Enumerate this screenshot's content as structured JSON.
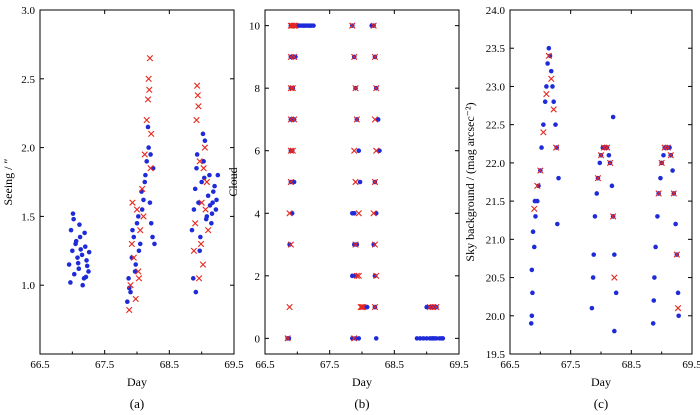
{
  "figure": {
    "colors": {
      "blue": "#1f2bd8",
      "red": "#e8261c",
      "axis": "#000000"
    },
    "marker_legend": {
      "blue": "circle",
      "red": "x-cross"
    }
  },
  "chart_data": [
    {
      "id": "a",
      "type": "scatter",
      "panel_label": "(a)",
      "xlabel": "Day",
      "ylabel": "Seeing / ″",
      "xlim": [
        66.5,
        69.5
      ],
      "ylim": [
        0.5,
        3.0
      ],
      "xticks": [
        66.5,
        67.5,
        68.5,
        69.5
      ],
      "xtick_labels": [
        "66.5",
        "67.5",
        "68.5",
        "69.5"
      ],
      "yticks": [
        1.0,
        1.5,
        2.0,
        2.5,
        3.0
      ],
      "ytick_labels": [
        "1.0",
        "1.5",
        "2.0",
        "2.5",
        "3.0"
      ],
      "series": [
        {
          "name": "blue-points",
          "marker": "circle",
          "color": "#1f2bd8",
          "x": [
            66.95,
            66.97,
            67.0,
            67.02,
            67.05,
            67.08,
            67.1,
            67.12,
            67.15,
            67.18,
            67.2,
            67.22,
            67.25,
            66.98,
            67.03,
            67.06,
            67.09,
            67.13,
            67.16,
            67.19,
            67.23,
            67.26,
            67.01,
            67.11,
            67.21,
            67.85,
            67.87,
            67.9,
            67.92,
            67.95,
            67.97,
            68.0,
            68.03,
            68.05,
            68.08,
            68.1,
            68.12,
            68.15,
            68.18,
            68.2,
            68.22,
            68.25,
            68.27,
            67.88,
            67.93,
            67.98,
            68.02,
            68.07,
            68.13,
            68.17,
            68.21,
            68.24,
            68.85,
            68.88,
            68.9,
            68.92,
            68.95,
            68.97,
            69.0,
            69.03,
            69.05,
            69.08,
            69.1,
            69.12,
            69.15,
            69.17,
            69.2,
            69.22,
            69.25,
            68.87,
            68.93,
            68.98,
            69.02,
            69.07,
            69.13,
            69.18,
            69.23,
            68.91,
            69.04,
            69.16
          ],
          "y": [
            1.15,
            1.02,
            1.25,
            1.48,
            1.3,
            1.2,
            1.12,
            1.35,
            1.22,
            1.05,
            1.28,
            1.18,
            1.1,
            1.4,
            1.08,
            1.32,
            1.16,
            1.26,
            1.0,
            1.38,
            1.14,
            1.24,
            1.52,
            1.44,
            1.06,
            0.88,
            1.05,
            0.95,
            1.2,
            1.35,
            1.1,
            1.45,
            1.25,
            1.3,
            1.55,
            1.62,
            1.75,
            1.9,
            2.0,
            1.6,
            1.45,
            1.85,
            1.3,
            0.98,
            1.4,
            1.15,
            1.5,
            1.68,
            1.8,
            2.15,
            1.95,
            1.35,
            1.4,
            1.55,
            1.7,
            1.85,
            1.6,
            1.25,
            1.75,
            1.9,
            2.05,
            1.5,
            1.65,
            1.8,
            1.45,
            1.6,
            1.72,
            1.55,
            1.8,
            1.05,
            1.95,
            1.35,
            2.1,
            1.48,
            1.58,
            1.68,
            1.62,
            0.95,
            1.78,
            1.52
          ]
        },
        {
          "name": "red-crosses",
          "marker": "x",
          "color": "#e8261c",
          "x": [
            67.88,
            67.9,
            67.93,
            67.95,
            67.98,
            68.0,
            68.02,
            68.05,
            68.08,
            68.12,
            68.15,
            68.17,
            68.18,
            68.2,
            68.22,
            68.19,
            68.21,
            67.92,
            68.03,
            68.1,
            68.88,
            68.9,
            68.93,
            68.95,
            68.97,
            69.0,
            69.02,
            69.05,
            69.08,
            69.1,
            68.92,
            68.96,
            69.03,
            68.94,
            68.99,
            69.06
          ],
          "y": [
            0.82,
            1.0,
            1.6,
            1.2,
            0.9,
            1.55,
            1.1,
            1.4,
            1.7,
            1.95,
            2.2,
            2.35,
            2.5,
            2.65,
            2.1,
            2.42,
            1.85,
            1.3,
            1.05,
            1.5,
            1.25,
            1.45,
            2.45,
            2.3,
            1.9,
            1.6,
            1.15,
            2.0,
            1.75,
            1.4,
            2.2,
            1.05,
            1.85,
            2.38,
            1.3,
            1.55
          ]
        }
      ]
    },
    {
      "id": "b",
      "type": "scatter",
      "panel_label": "(b)",
      "xlabel": "Day",
      "ylabel": "Cloud",
      "xlim": [
        66.5,
        69.5
      ],
      "ylim": [
        -0.5,
        10.5
      ],
      "xticks": [
        66.5,
        67.5,
        68.5,
        69.5
      ],
      "xtick_labels": [
        "66.5",
        "67.5",
        "68.5",
        "69.5"
      ],
      "yticks": [
        0,
        2,
        4,
        6,
        8,
        10
      ],
      "ytick_labels": [
        "0",
        "2",
        "4",
        "6",
        "8",
        "10"
      ],
      "series": [
        {
          "name": "blue-points",
          "marker": "circle",
          "color": "#1f2bd8",
          "x": [
            66.85,
            66.87,
            66.9,
            66.92,
            66.95,
            66.97,
            67.0,
            67.02,
            67.05,
            67.08,
            67.1,
            67.12,
            67.15,
            67.18,
            67.2,
            67.22,
            67.25,
            66.9,
            66.93,
            66.95,
            66.97,
            66.9,
            66.93,
            66.9,
            66.95,
            66.9,
            66.92,
            66.9,
            66.95,
            66.92,
            66.88,
            67.85,
            67.88,
            67.9,
            67.92,
            67.95,
            67.97,
            68.0,
            68.02,
            68.05,
            68.08,
            67.85,
            67.9,
            67.95,
            67.88,
            67.92,
            67.85,
            67.9,
            67.85,
            67.88,
            68.15,
            68.18,
            68.2,
            68.22,
            68.25,
            68.27,
            68.2,
            68.22,
            68.18,
            68.2,
            68.2,
            68.22,
            68.85,
            68.9,
            68.95,
            69.0,
            69.05,
            69.08,
            69.1,
            69.12,
            69.15,
            69.2,
            69.23,
            69.25,
            69.0,
            69.05,
            69.1,
            69.15
          ],
          "y": [
            0,
            0,
            10,
            10,
            10,
            10,
            10,
            10,
            10,
            10,
            10,
            10,
            10,
            10,
            10,
            10,
            10,
            9,
            9,
            9,
            9,
            8,
            8,
            7,
            7,
            6,
            6,
            5,
            5,
            4,
            3,
            10,
            9,
            8,
            7,
            6,
            5,
            1,
            1,
            1,
            1,
            0,
            0,
            0,
            3,
            3,
            2,
            2,
            4,
            4,
            10,
            10,
            9,
            8,
            7,
            6,
            5,
            4,
            3,
            2,
            1,
            0,
            0,
            0,
            0,
            0,
            0,
            0,
            0,
            0,
            0,
            0,
            0,
            0,
            1,
            1,
            1,
            1
          ]
        },
        {
          "name": "red-crosses",
          "marker": "x",
          "color": "#e8261c",
          "x": [
            66.85,
            66.88,
            66.9,
            66.92,
            66.95,
            66.97,
            66.9,
            66.95,
            66.9,
            66.93,
            66.9,
            66.95,
            66.9,
            66.93,
            66.9,
            66.88,
            66.9,
            67.85,
            67.88,
            67.9,
            67.92,
            67.95,
            67.98,
            68.0,
            68.02,
            67.88,
            67.9,
            67.95,
            67.9,
            67.88,
            67.92,
            68.18,
            68.2,
            68.22,
            68.2,
            68.22,
            68.2,
            68.18,
            68.2,
            68.22,
            68.2,
            69.05,
            69.1,
            69.15
          ],
          "y": [
            0,
            1,
            10,
            10,
            10,
            10,
            9,
            9,
            8,
            8,
            7,
            7,
            6,
            6,
            5,
            4,
            3,
            10,
            9,
            8,
            7,
            2,
            1,
            1,
            1,
            6,
            5,
            4,
            3,
            0,
            2,
            10,
            9,
            8,
            7,
            6,
            5,
            4,
            3,
            2,
            1,
            1,
            1,
            1
          ]
        }
      ]
    },
    {
      "id": "c",
      "type": "scatter",
      "panel_label": "(c)",
      "xlabel": "Day",
      "ylabel": "Sky background / (mag arcsec⁻²)",
      "xlim": [
        66.5,
        69.5
      ],
      "ylim": [
        19.5,
        24.0
      ],
      "xticks": [
        66.5,
        67.5,
        68.5,
        69.5
      ],
      "xtick_labels": [
        "66.5",
        "67.5",
        "68.5",
        "69.5"
      ],
      "yticks": [
        19.5,
        20.0,
        20.5,
        21.0,
        21.5,
        22.0,
        22.5,
        23.0,
        23.5,
        24.0
      ],
      "ytick_labels": [
        "19.5",
        "20.0",
        "20.5",
        "21.0",
        "21.5",
        "22.0",
        "22.5",
        "23.0",
        "23.5",
        "24.0"
      ],
      "series": [
        {
          "name": "blue-points",
          "marker": "circle",
          "color": "#1f2bd8",
          "x": [
            66.85,
            66.87,
            66.9,
            66.92,
            66.95,
            66.97,
            67.0,
            67.02,
            67.05,
            67.08,
            67.1,
            67.12,
            67.14,
            67.16,
            67.18,
            67.2,
            67.22,
            67.25,
            67.27,
            67.3,
            66.86,
            66.88,
            66.91,
            66.86,
            67.28,
            67.85,
            67.88,
            67.9,
            67.93,
            67.95,
            67.98,
            68.0,
            68.03,
            68.05,
            68.08,
            68.1,
            68.13,
            68.15,
            68.18,
            68.2,
            68.22,
            68.25,
            68.2,
            68.22,
            67.87,
            68.86,
            68.88,
            68.9,
            68.93,
            68.95,
            68.98,
            69.0,
            69.03,
            69.05,
            69.08,
            69.1,
            69.13,
            69.15,
            69.18,
            69.2,
            69.23,
            69.25,
            69.27,
            69.28,
            68.87
          ],
          "y": [
            19.9,
            20.3,
            20.9,
            21.3,
            21.5,
            21.7,
            21.9,
            22.2,
            22.5,
            22.8,
            23.0,
            23.3,
            23.5,
            23.4,
            23.2,
            23.0,
            22.8,
            22.5,
            22.2,
            21.8,
            20.6,
            21.1,
            21.5,
            20.0,
            21.2,
            20.1,
            20.8,
            21.3,
            21.6,
            21.8,
            22.0,
            22.1,
            22.2,
            22.2,
            22.2,
            22.2,
            22.1,
            22.0,
            21.7,
            21.3,
            20.8,
            20.3,
            22.6,
            19.8,
            20.5,
            19.9,
            20.5,
            20.9,
            21.3,
            21.6,
            21.8,
            22.0,
            22.1,
            22.2,
            22.2,
            22.2,
            22.2,
            22.1,
            21.9,
            21.6,
            21.2,
            20.8,
            20.3,
            20.0,
            20.2
          ]
        },
        {
          "name": "red-crosses",
          "marker": "x",
          "color": "#e8261c",
          "x": [
            66.9,
            66.95,
            67.0,
            67.05,
            67.1,
            67.14,
            67.18,
            67.22,
            67.26,
            67.95,
            68.0,
            68.05,
            68.1,
            68.15,
            68.2,
            68.22,
            68.95,
            69.0,
            69.05,
            69.1,
            69.15,
            69.2,
            69.25,
            69.27
          ],
          "y": [
            21.4,
            21.7,
            21.9,
            22.4,
            22.9,
            23.4,
            23.1,
            22.7,
            22.2,
            21.8,
            22.1,
            22.2,
            22.2,
            22.0,
            21.3,
            20.5,
            21.6,
            22.0,
            22.2,
            22.2,
            22.1,
            21.6,
            20.8,
            20.1
          ]
        }
      ]
    }
  ]
}
